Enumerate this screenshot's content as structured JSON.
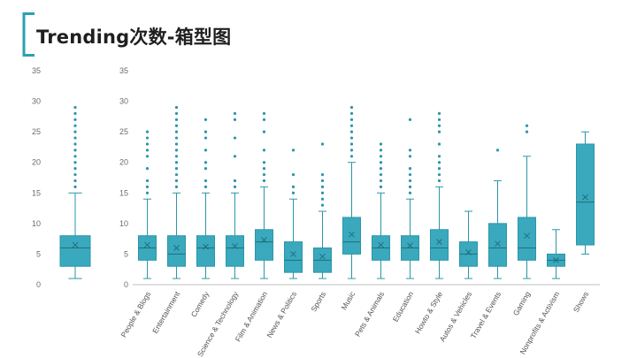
{
  "header": {
    "title": "Trending次数-箱型图"
  },
  "colors": {
    "accent": "#2aa0b3",
    "box_fill": "#3aa9bd",
    "box_stroke": "#2b96a8",
    "axis": "#bfbfbf"
  },
  "chart_data": [
    {
      "type": "box",
      "title": "",
      "ylim": [
        0,
        35
      ],
      "yticks": [
        0,
        5,
        10,
        15,
        20,
        25,
        30,
        35
      ],
      "categories": [
        ""
      ],
      "series": [
        {
          "min": 1,
          "q1": 3,
          "median": 6,
          "q3": 8,
          "max": 15,
          "mean": 6.5,
          "outliers": [
            16,
            17,
            18,
            19,
            20,
            21,
            22,
            23,
            24,
            25,
            26,
            27,
            28,
            29
          ]
        }
      ]
    },
    {
      "type": "box",
      "title": "",
      "ylim": [
        0,
        35
      ],
      "yticks": [
        0,
        5,
        10,
        15,
        20,
        25,
        30,
        35
      ],
      "categories": [
        "People & Blogs",
        "Entertainment",
        "Comedy",
        "Science & Technology",
        "Film & Animation",
        "News & Politics",
        "Sports",
        "Music",
        "Pets & Animals",
        "Education",
        "Howto & Style",
        "Autos & Vehicles",
        "Travel & Events",
        "Gaming",
        "Nonprofits & Activism",
        "Shows"
      ],
      "series": [
        {
          "min": 1,
          "q1": 4,
          "median": 6,
          "q3": 8,
          "max": 14,
          "mean": 6.5,
          "outliers": [
            15,
            16,
            17,
            19,
            21,
            22,
            23,
            24,
            25
          ]
        },
        {
          "min": 1,
          "q1": 3,
          "median": 5,
          "q3": 8,
          "max": 15,
          "mean": 6,
          "outliers": [
            16,
            17,
            18,
            19,
            20,
            21,
            22,
            23,
            24,
            25,
            26,
            27,
            28,
            29
          ]
        },
        {
          "min": 1,
          "q1": 3,
          "median": 6,
          "q3": 8,
          "max": 15,
          "mean": 6.2,
          "outliers": [
            16,
            17,
            19,
            20,
            22,
            24,
            25,
            27
          ]
        },
        {
          "min": 1,
          "q1": 3,
          "median": 6,
          "q3": 8,
          "max": 15,
          "mean": 6.3,
          "outliers": [
            16,
            17,
            21,
            24,
            27,
            28
          ]
        },
        {
          "min": 1,
          "q1": 4,
          "median": 7,
          "q3": 9,
          "max": 16,
          "mean": 7.3,
          "outliers": [
            17,
            18,
            19,
            20,
            22,
            25,
            27,
            28
          ]
        },
        {
          "min": 1,
          "q1": 2,
          "median": 4,
          "q3": 7,
          "max": 14,
          "mean": 5,
          "outliers": [
            15,
            16,
            18,
            22
          ]
        },
        {
          "min": 1,
          "q1": 2,
          "median": 4,
          "q3": 6,
          "max": 12,
          "mean": 4.6,
          "outliers": [
            13,
            14,
            15,
            16,
            17,
            18,
            23
          ]
        },
        {
          "min": 1,
          "q1": 5,
          "median": 7,
          "q3": 11,
          "max": 20,
          "mean": 8.2,
          "outliers": [
            21,
            22,
            23,
            24,
            25,
            26,
            27,
            28,
            29
          ]
        },
        {
          "min": 1,
          "q1": 4,
          "median": 6,
          "q3": 8,
          "max": 15,
          "mean": 6.5,
          "outliers": [
            16,
            17,
            18,
            19,
            20,
            21,
            22,
            23
          ]
        },
        {
          "min": 1,
          "q1": 4,
          "median": 6,
          "q3": 8,
          "max": 14,
          "mean": 6.4,
          "outliers": [
            15,
            16,
            17,
            18,
            19,
            21,
            22,
            27
          ]
        },
        {
          "min": 1,
          "q1": 4,
          "median": 6,
          "q3": 9,
          "max": 16,
          "mean": 7,
          "outliers": [
            17,
            18,
            19,
            20,
            21,
            23,
            25,
            26,
            27,
            28
          ]
        },
        {
          "min": 1,
          "q1": 3,
          "median": 5,
          "q3": 7,
          "max": 12,
          "mean": 5.3,
          "outliers": []
        },
        {
          "min": 1,
          "q1": 3,
          "median": 6,
          "q3": 10,
          "max": 17,
          "mean": 6.7,
          "outliers": [
            22
          ]
        },
        {
          "min": 1,
          "q1": 4,
          "median": 6,
          "q3": 11,
          "max": 21,
          "mean": 8,
          "outliers": [
            25,
            26
          ]
        },
        {
          "min": 1,
          "q1": 3,
          "median": 4,
          "q3": 5,
          "max": 9,
          "mean": 4,
          "outliers": []
        },
        {
          "min": 5,
          "q1": 6.5,
          "median": 13.5,
          "q3": 23,
          "max": 25,
          "mean": 14.3,
          "outliers": []
        }
      ]
    }
  ]
}
